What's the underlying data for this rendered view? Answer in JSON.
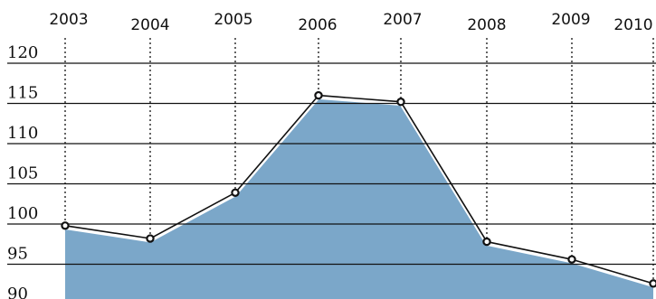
{
  "chart_data": {
    "type": "area",
    "title": "",
    "xlabel": "",
    "ylabel": "",
    "x": [
      "2003",
      "2004",
      "2005",
      "2006",
      "2007",
      "2008",
      "2009",
      "2010"
    ],
    "series": [
      {
        "values": [
          99.8,
          98.2,
          103.9,
          116.0,
          115.2,
          97.8,
          95.6,
          92.6
        ]
      }
    ],
    "y_ticks": [
      "90",
      "95",
      "100",
      "105",
      "110",
      "115",
      "120"
    ],
    "ylim": [
      90,
      120
    ],
    "grid": "horizontal lines at each y tick, dotted vertical lines from each year label to its data point",
    "colors": {
      "area_fill": "#7ba7c9",
      "area_highlight": "#ffffff",
      "line": "#111111",
      "gridline": "#111111",
      "marker_fill": "#ffffff",
      "marker_stroke": "#111111"
    }
  }
}
